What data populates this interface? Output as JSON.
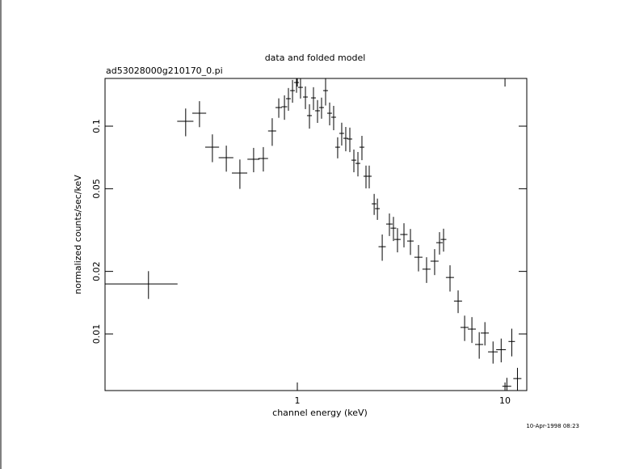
{
  "chart_data": {
    "type": "errorbar",
    "title": "data and folded model",
    "subtitle": "ad53028000g210170_0.pi",
    "x_label": "channel energy (keV)",
    "y_label": "normalized counts/sec/keV",
    "annotation": "10-Apr-1998 08:23",
    "xscale": "log",
    "yscale": "log",
    "grid": false,
    "color": "#000000",
    "xlim": [
      0.1186,
      12.73
    ],
    "ylim": [
      0.00534,
      0.1697
    ],
    "xticks": [
      1,
      10
    ],
    "yticks": [
      0.01,
      0.02,
      0.05,
      0.1
    ],
    "x": [
      0.192,
      0.29,
      0.338,
      0.39,
      0.455,
      0.529,
      0.616,
      0.686,
      0.757,
      0.814,
      0.867,
      0.906,
      0.948,
      0.991,
      1.036,
      1.094,
      1.144,
      1.196,
      1.251,
      1.308,
      1.368,
      1.431,
      1.496,
      1.564,
      1.636,
      1.711,
      1.79,
      1.872,
      1.958,
      2.047,
      2.141,
      2.219,
      2.344,
      2.43,
      2.563,
      2.776,
      2.903,
      3.036,
      3.262,
      3.505,
      3.832,
      4.191,
      4.583,
      4.838,
      5.06,
      5.436,
      5.946,
      6.391,
      6.928,
      7.514,
      8.003,
      8.757,
      9.583,
      10.21,
      10.78,
      11.48
    ],
    "xerr": [
      0.073,
      0.026,
      0.026,
      0.03,
      0.037,
      0.045,
      0.041,
      0.037,
      0.034,
      0.029,
      0.027,
      0.024,
      0.025,
      0.027,
      0.028,
      0.029,
      0.031,
      0.032,
      0.034,
      0.035,
      0.037,
      0.038,
      0.04,
      0.042,
      0.044,
      0.046,
      0.048,
      0.05,
      0.053,
      0.055,
      0.058,
      0.06,
      0.063,
      0.065,
      0.103,
      0.099,
      0.091,
      0.109,
      0.132,
      0.126,
      0.172,
      0.188,
      0.205,
      0.173,
      0.159,
      0.244,
      0.266,
      0.286,
      0.31,
      0.337,
      0.359,
      0.471,
      0.515,
      0.503,
      0.386,
      0.514
    ],
    "y": [
      0.0174,
      0.1055,
      0.1154,
      0.0792,
      0.0705,
      0.0595,
      0.0693,
      0.0699,
      0.0948,
      0.1229,
      0.124,
      0.1356,
      0.1483,
      0.1622,
      0.1537,
      0.1381,
      0.1124,
      0.1368,
      0.1186,
      0.1229,
      0.1483,
      0.1154,
      0.1104,
      0.0792,
      0.0923,
      0.0874,
      0.0867,
      0.0686,
      0.0662,
      0.0792,
      0.0574,
      0.0574,
      0.0423,
      0.0401,
      0.0263,
      0.0338,
      0.0323,
      0.0285,
      0.0301,
      0.028,
      0.0234,
      0.0205,
      0.0224,
      0.0275,
      0.0285,
      0.0187,
      0.0144,
      0.01075,
      0.01055,
      0.0089,
      0.0101,
      0.0082,
      0.0084,
      0.0056,
      0.0092,
      0.0061
    ],
    "yerr": [
      0.00266,
      0.0161,
      0.0165,
      0.0121,
      0.0101,
      0.0096,
      0.0093,
      0.0094,
      0.0144,
      0.0132,
      0.0167,
      0.017,
      0.0186,
      0.0174,
      0.0179,
      0.0173,
      0.0151,
      0.0172,
      0.0149,
      0.0143,
      0.0226,
      0.0145,
      0.0148,
      0.0092,
      0.0116,
      0.0117,
      0.0117,
      0.0086,
      0.0089,
      0.0106,
      0.0072,
      0.0072,
      0.0049,
      0.0047,
      0.0038,
      0.0042,
      0.0043,
      0.0038,
      0.004,
      0.004,
      0.0034,
      0.0029,
      0.0032,
      0.0034,
      0.0036,
      0.0027,
      0.0018,
      0.0015,
      0.0015,
      0.0013,
      0.0013,
      0.001,
      0.0011,
      0.00055,
      0.0014,
      0.00077
    ]
  }
}
